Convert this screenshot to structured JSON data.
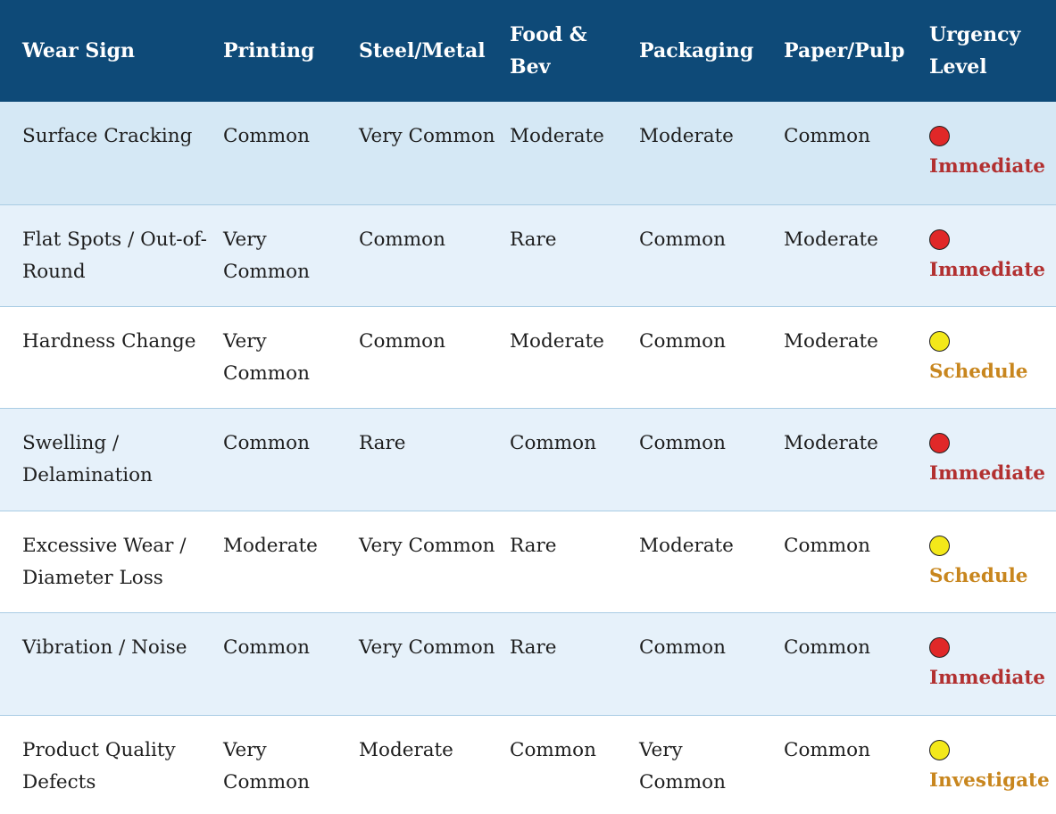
{
  "headers": [
    "Wear Sign",
    "Printing",
    "Steel/Metal",
    "Food & Bev",
    "Packaging",
    "Paper/Pulp",
    "Urgency Level"
  ],
  "colors": {
    "header_bg": "#0e4a78",
    "immediate_dot": "#e02828",
    "immediate_text": "#b23030",
    "schedule_dot": "#f3e81a",
    "schedule_text": "#c8861e",
    "investigate_dot": "#f3e81a",
    "investigate_text": "#c8861e"
  },
  "rows": [
    {
      "wear_sign": "Surface Cracking",
      "printing": "Common",
      "steel_metal": "Very Common",
      "food_bev": "Moderate",
      "packaging": "Moderate",
      "paper_pulp": "Common",
      "urgency": "Immediate",
      "urgency_icon": "red-circle-icon"
    },
    {
      "wear_sign": "Flat Spots / Out-of-Round",
      "printing": "Very Common",
      "steel_metal": "Common",
      "food_bev": "Rare",
      "packaging": "Common",
      "paper_pulp": "Moderate",
      "urgency": "Immediate",
      "urgency_icon": "red-circle-icon"
    },
    {
      "wear_sign": "Hardness Change",
      "printing": "Very Common",
      "steel_metal": "Common",
      "food_bev": "Moderate",
      "packaging": "Common",
      "paper_pulp": "Moderate",
      "urgency": "Schedule",
      "urgency_icon": "yellow-circle-icon"
    },
    {
      "wear_sign": "Swelling / Delamination",
      "printing": "Common",
      "steel_metal": "Rare",
      "food_bev": "Common",
      "packaging": "Common",
      "paper_pulp": "Moderate",
      "urgency": "Immediate",
      "urgency_icon": "red-circle-icon"
    },
    {
      "wear_sign": "Excessive Wear / Diameter Loss",
      "printing": "Moderate",
      "steel_metal": "Very Common",
      "food_bev": "Rare",
      "packaging": "Moderate",
      "paper_pulp": "Common",
      "urgency": "Schedule",
      "urgency_icon": "yellow-circle-icon"
    },
    {
      "wear_sign": "Vibration / Noise",
      "printing": "Common",
      "steel_metal": "Very Common",
      "food_bev": "Rare",
      "packaging": "Common",
      "paper_pulp": "Common",
      "urgency": "Immediate",
      "urgency_icon": "red-circle-icon"
    },
    {
      "wear_sign": "Product Quality Defects",
      "printing": "Very Common",
      "steel_metal": "Moderate",
      "food_bev": "Common",
      "packaging": "Very Common",
      "paper_pulp": "Common",
      "urgency": "Investigate",
      "urgency_icon": "yellow-circle-icon"
    }
  ]
}
